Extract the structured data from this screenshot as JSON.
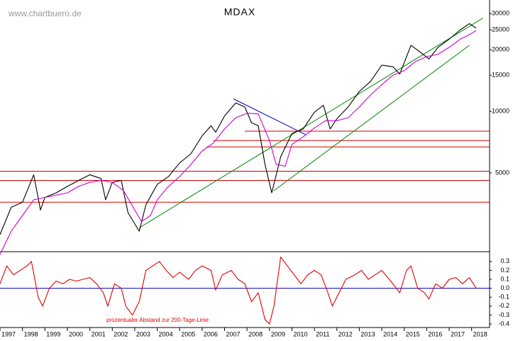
{
  "watermark": "www.chartbuero.de",
  "chart_data": [
    {
      "type": "line",
      "title": "MDAX",
      "log": true,
      "xlim": [
        1997,
        2018.8
      ],
      "ylim": [
        2065,
        34940
      ],
      "yticks": [
        5000,
        10000,
        15000,
        20000,
        25000,
        30000
      ],
      "series": [
        {
          "color": "#000000",
          "x": [
            1997.0,
            1997.5,
            1998.0,
            1998.5,
            1998.8,
            1999.0,
            1999.5,
            2000.0,
            2000.5,
            2001.0,
            2001.5,
            2001.7,
            2002.0,
            2002.4,
            2002.7,
            2003.2,
            2003.5,
            2004.0,
            2004.5,
            2005.0,
            2005.5,
            2006.0,
            2006.4,
            2006.6,
            2007.0,
            2007.5,
            2007.9,
            2008.2,
            2008.5,
            2008.8,
            2009.1,
            2009.5,
            2010.0,
            2010.5,
            2011.0,
            2011.4,
            2011.7,
            2012.0,
            2012.5,
            2013.0,
            2013.5,
            2014.0,
            2014.5,
            2014.8,
            2015.3,
            2015.7,
            2016.1,
            2016.5,
            2017.0,
            2017.5,
            2017.9,
            2018.2
          ],
          "values": [
            2500,
            3400,
            3600,
            4900,
            3300,
            3800,
            4000,
            4300,
            4600,
            4900,
            4700,
            3700,
            4500,
            4600,
            3200,
            2600,
            3500,
            4400,
            4800,
            5600,
            6200,
            7600,
            8500,
            7900,
            9500,
            11000,
            10500,
            8800,
            8500,
            5500,
            4000,
            6000,
            7800,
            8200,
            9900,
            10700,
            8200,
            9200,
            10500,
            12500,
            14000,
            16800,
            16500,
            15200,
            21000,
            19500,
            18000,
            20500,
            22500,
            25000,
            26800,
            25500
          ]
        },
        {
          "color": "#d000d0",
          "x": [
            1997.0,
            1997.5,
            1998.0,
            1998.5,
            1999.0,
            1999.5,
            2000.0,
            2000.5,
            2001.0,
            2001.5,
            2002.0,
            2002.5,
            2003.0,
            2003.3,
            2003.7,
            2004.0,
            2004.5,
            2005.0,
            2005.5,
            2006.0,
            2006.5,
            2007.0,
            2007.5,
            2008.0,
            2008.5,
            2009.0,
            2009.3,
            2009.7,
            2010.0,
            2010.5,
            2011.0,
            2011.5,
            2012.0,
            2012.5,
            2013.0,
            2013.5,
            2014.0,
            2014.5,
            2015.0,
            2015.5,
            2016.0,
            2016.5,
            2017.0,
            2017.5,
            2018.0,
            2018.2
          ],
          "values": [
            2000,
            2600,
            3100,
            3700,
            3800,
            3900,
            4000,
            4300,
            4500,
            4600,
            4500,
            4100,
            3300,
            2900,
            3100,
            3700,
            4300,
            4800,
            5500,
            6400,
            7000,
            8200,
            9300,
            9800,
            9700,
            7200,
            5500,
            5400,
            6900,
            7500,
            8300,
            9000,
            9000,
            9300,
            10500,
            12000,
            13500,
            15000,
            15800,
            17500,
            18500,
            19000,
            20500,
            22500,
            24000,
            24800
          ]
        }
      ],
      "hlines": [
        {
          "value": 8000,
          "from": 2007.9,
          "color": "#d00000"
        },
        {
          "value": 7200,
          "from": 2006.5,
          "color": "#d00000"
        },
        {
          "value": 6700,
          "from": 2006.2,
          "color": "#d00000"
        },
        {
          "value": 5100,
          "from": 1997.0,
          "color": "#d00000"
        },
        {
          "value": 4600,
          "from": 1997.0,
          "color": "#d00000"
        },
        {
          "value": 3600,
          "from": 1997.0,
          "color": "#d00000"
        }
      ],
      "trendlines": [
        {
          "color": "#008800",
          "x": [
            2003.2,
            2018.5
          ],
          "values": [
            2700,
            28500
          ]
        },
        {
          "color": "#008800",
          "x": [
            2009.2,
            2017.9
          ],
          "values": [
            4100,
            21000
          ]
        },
        {
          "color": "#0000c0",
          "x": [
            2007.4,
            2010.6
          ],
          "values": [
            11500,
            7700
          ]
        }
      ]
    },
    {
      "type": "line",
      "annotation": "prozentualer Abstand zur 200-Tage-Linie",
      "xlim": [
        1997,
        2018.8
      ],
      "ylim": [
        -0.44,
        0.41
      ],
      "yticks": [
        0.3,
        0.2,
        0.1,
        {
          "value": 0,
          "label": "0.0"
        },
        -0.1,
        -0.2,
        -0.3,
        -0.4
      ],
      "xticks": [
        1997,
        1998,
        1999,
        2000,
        2001,
        2002,
        2003,
        2004,
        2005,
        2006,
        2007,
        2008,
        2009,
        2010,
        2011,
        2012,
        2013,
        2014,
        2015,
        2016,
        2017,
        2018
      ],
      "baseline": {
        "value": 0,
        "color": "#0000c0"
      },
      "series": [
        {
          "color": "#e00000",
          "x": [
            1997.0,
            1997.3,
            1997.6,
            1997.9,
            1998.2,
            1998.4,
            1998.7,
            1998.9,
            1999.2,
            1999.5,
            1999.8,
            2000.1,
            2000.4,
            2000.7,
            2001.0,
            2001.3,
            2001.6,
            2001.8,
            2002.1,
            2002.4,
            2002.6,
            2002.9,
            2003.2,
            2003.5,
            2003.8,
            2004.1,
            2004.4,
            2004.7,
            2005.0,
            2005.4,
            2005.7,
            2006.0,
            2006.4,
            2006.6,
            2006.9,
            2007.3,
            2007.6,
            2007.9,
            2008.2,
            2008.5,
            2008.8,
            2009.0,
            2009.2,
            2009.5,
            2009.8,
            2010.1,
            2010.4,
            2010.7,
            2011.0,
            2011.3,
            2011.6,
            2011.8,
            2012.1,
            2012.4,
            2012.8,
            2013.1,
            2013.4,
            2013.7,
            2014.0,
            2014.4,
            2014.8,
            2015.1,
            2015.3,
            2015.6,
            2015.9,
            2016.1,
            2016.4,
            2016.7,
            2017.0,
            2017.3,
            2017.6,
            2017.9,
            2018.2
          ],
          "values": [
            0.05,
            0.25,
            0.15,
            0.2,
            0.25,
            0.3,
            -0.1,
            -0.2,
            0.0,
            0.08,
            0.05,
            0.1,
            0.08,
            0.1,
            0.12,
            0.05,
            -0.05,
            -0.2,
            0.05,
            0.0,
            -0.2,
            -0.3,
            -0.15,
            0.2,
            0.25,
            0.3,
            0.2,
            0.12,
            0.18,
            0.1,
            0.2,
            0.25,
            0.2,
            -0.02,
            0.15,
            0.2,
            0.1,
            0.05,
            -0.15,
            -0.05,
            -0.35,
            -0.4,
            -0.2,
            0.35,
            0.25,
            0.15,
            0.05,
            0.15,
            0.2,
            0.15,
            -0.05,
            -0.2,
            -0.05,
            0.1,
            0.15,
            0.2,
            0.1,
            0.15,
            0.2,
            0.08,
            -0.05,
            0.2,
            0.25,
            0.0,
            -0.05,
            -0.12,
            0.05,
            0.0,
            0.1,
            0.12,
            0.05,
            0.12,
            0.0
          ]
        }
      ]
    }
  ]
}
